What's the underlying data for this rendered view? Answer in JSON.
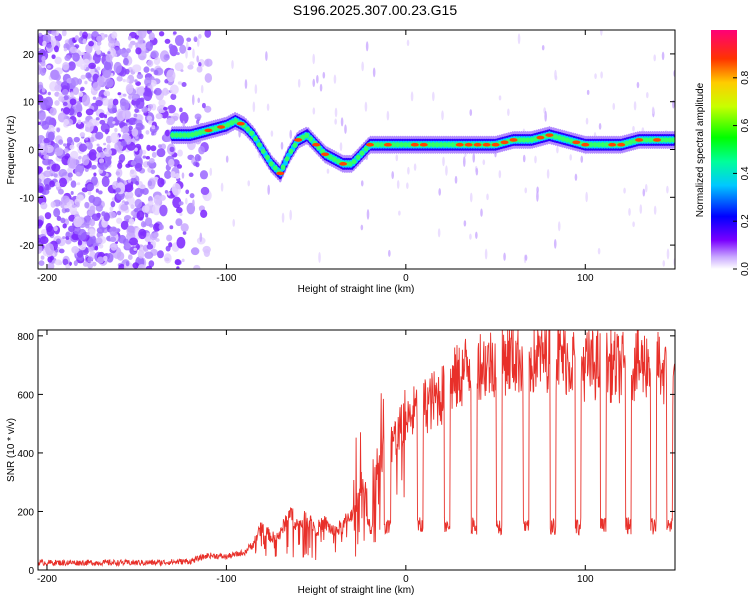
{
  "title": "S196.2025.307.00.23.G15",
  "chart_data": [
    {
      "type": "heatmap",
      "title": "",
      "xlabel": "Height of straight line (km)",
      "ylabel": "Frequency (Hz)",
      "xlim": [
        -205,
        150
      ],
      "ylim": [
        -25,
        25
      ],
      "xticks": [
        -200,
        -100,
        0,
        100
      ],
      "yticks": [
        -20,
        -10,
        0,
        10,
        20
      ],
      "colorbar": {
        "label": "Normalized spectral amplitude",
        "range": [
          0,
          1
        ],
        "ticks": [
          0.0,
          0.2,
          0.4,
          0.6,
          0.8
        ]
      },
      "ridge": {
        "x": [
          -130,
          -120,
          -110,
          -100,
          -95,
          -90,
          -85,
          -80,
          -75,
          -70,
          -65,
          -60,
          -55,
          -50,
          -45,
          -40,
          -35,
          -30,
          -25,
          -20,
          -10,
          0,
          10,
          20,
          30,
          40,
          50,
          60,
          70,
          80,
          90,
          100,
          110,
          120,
          130,
          140,
          150
        ],
        "freq": [
          3,
          3,
          4,
          5,
          6,
          5,
          3,
          0,
          -3,
          -5,
          -1,
          2,
          3,
          1,
          -1,
          -2,
          -3,
          -3,
          -1,
          1,
          1,
          1,
          1,
          1,
          1,
          1,
          1,
          2,
          2,
          3,
          2,
          1,
          1,
          1,
          2,
          2,
          2
        ]
      },
      "noise_region_x": [
        -205,
        -125
      ]
    },
    {
      "type": "line",
      "title": "",
      "xlabel": "Height of straight line (km)",
      "ylabel": "SNR (10 * v/v)",
      "xlim": [
        -205,
        150
      ],
      "ylim": [
        0,
        820
      ],
      "xticks": [
        -200,
        -100,
        0,
        100
      ],
      "yticks": [
        0,
        200,
        400,
        600,
        800
      ],
      "series": [
        {
          "name": "SNR",
          "color": "#e8302a",
          "x": [
            -205,
            -180,
            -160,
            -140,
            -120,
            -110,
            -100,
            -90,
            -85,
            -80,
            -75,
            -70,
            -65,
            -60,
            -55,
            -50,
            -45,
            -40,
            -35,
            -30,
            -25,
            -20,
            -15,
            -10,
            -5,
            0,
            5,
            10,
            15,
            20,
            25,
            30,
            35,
            40,
            45,
            50,
            60,
            70,
            80,
            90,
            100,
            110,
            120,
            130,
            140,
            150
          ],
          "values": [
            25,
            25,
            25,
            25,
            30,
            50,
            45,
            60,
            90,
            150,
            110,
            120,
            200,
            150,
            180,
            140,
            160,
            130,
            150,
            200,
            250,
            300,
            380,
            420,
            460,
            500,
            540,
            560,
            580,
            600,
            640,
            660,
            700,
            710,
            700,
            720,
            730,
            720,
            740,
            720,
            700,
            700,
            690,
            700,
            720,
            600
          ]
        }
      ],
      "dropouts_x": [
        -20,
        -10,
        8,
        23,
        38,
        52,
        67,
        82,
        96,
        110,
        124,
        138,
        147
      ],
      "dropout_level": 150
    }
  ]
}
